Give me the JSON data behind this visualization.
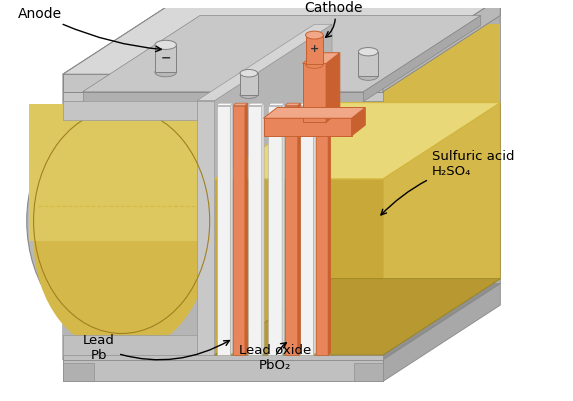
{
  "title": "",
  "background_color": "#ffffff",
  "labels": {
    "anode": "Anode",
    "cathode": "Cathode",
    "lead": "Lead\nPb",
    "lead_oxide": "Lead oxide\nPbO₂",
    "sulfuric_acid": "Sulfuric acid\nH₂SO₄"
  },
  "colors": {
    "gray_outer": "#c0c0c0",
    "gray_top": "#d0d0d0",
    "gray_side": "#b0b0b0",
    "gray_dark": "#909090",
    "gray_inner": "#c8c8c8",
    "orange_light": "#f0a888",
    "orange_mid": "#e8855a",
    "orange_dark": "#c86030",
    "white_plate": "#f0f0f0",
    "white_plate_shadow": "#d5d5d5",
    "white_plate_top": "#fafafa",
    "acid_top": "#e8d890",
    "acid_body": "#d4b84a",
    "acid_front": "#c8aa3c",
    "acid_side": "#b89830",
    "tan_body_light": "#e0c060",
    "tan_body": "#c8a838",
    "tan_body_dark": "#b09028"
  },
  "figsize": [
    5.73,
    4.02
  ],
  "dpi": 100
}
